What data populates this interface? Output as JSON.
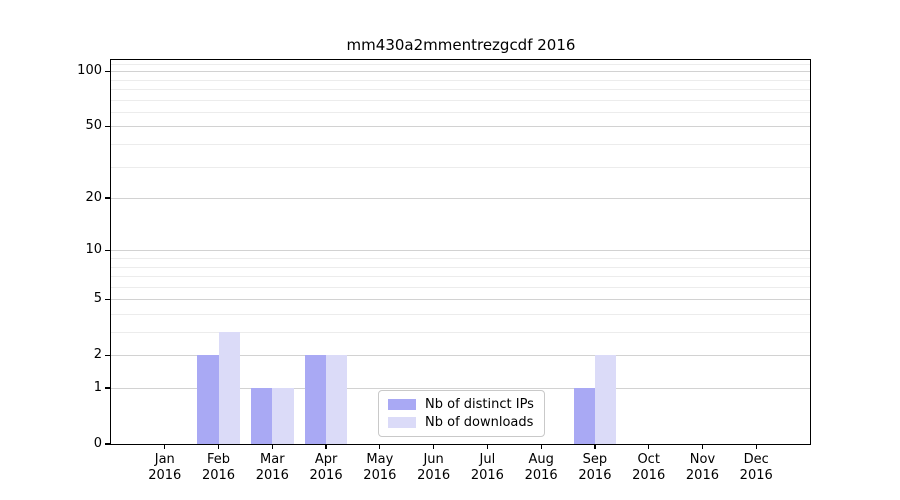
{
  "chart_data": {
    "type": "bar",
    "title": "mm430a2mmentrezgcdf 2016",
    "categories": [
      "Jan",
      "Feb",
      "Mar",
      "Apr",
      "May",
      "Jun",
      "Jul",
      "Aug",
      "Sep",
      "Oct",
      "Nov",
      "Dec"
    ],
    "category_year": "2016",
    "series": [
      {
        "name": "Nb of distinct IPs",
        "color": "#a9a9f4",
        "values": [
          0,
          2,
          1,
          2,
          0,
          0,
          0,
          0,
          1,
          0,
          0,
          0
        ]
      },
      {
        "name": "Nb of downloads",
        "color": "#dbdbf8",
        "values": [
          0,
          3,
          1,
          2,
          0,
          0,
          0,
          0,
          2,
          0,
          0,
          0
        ]
      }
    ],
    "xlabel": "",
    "ylabel": "",
    "yscale": "log1p",
    "ylim": [
      0,
      115
    ],
    "yticks": [
      0,
      1,
      2,
      5,
      10,
      20,
      50,
      100
    ],
    "minor_gridlines": [
      3,
      4,
      6,
      7,
      8,
      9,
      30,
      40,
      60,
      70,
      80,
      90,
      110
    ],
    "grid": "horizontal",
    "legend_position": "lower center"
  },
  "style": {
    "grid_major_color": "#d2d2d2",
    "grid_minor_color": "#ececec",
    "axis_color": "#000000",
    "text_color": "#000000",
    "legend_border_color": "#c9c9c9",
    "legend_background": "#ffffff"
  }
}
